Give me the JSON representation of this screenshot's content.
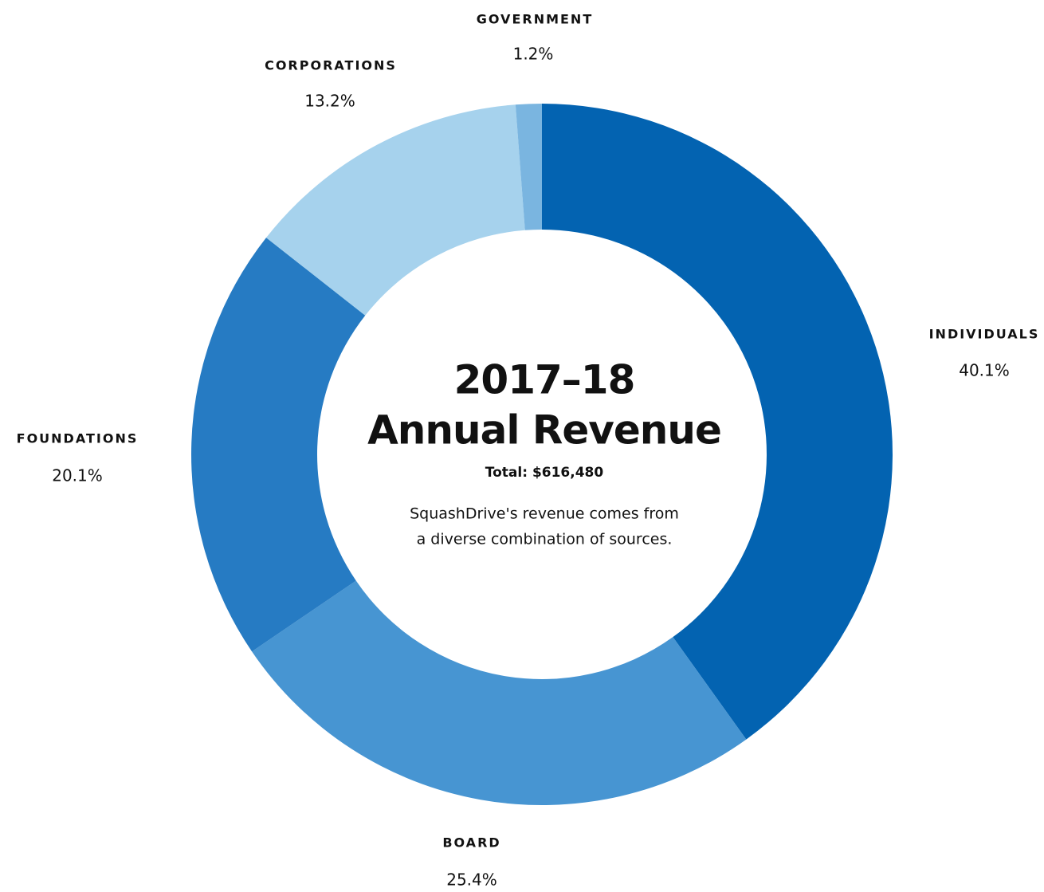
{
  "chart_data": {
    "type": "donut",
    "title": [
      "2017–18",
      "Annual Revenue"
    ],
    "subtitle": "Total: $616,480",
    "description": [
      "SquashDrive's revenue comes from",
      "a diverse combination of sources."
    ],
    "categories": [
      "INDIVIDUALS",
      "BOARD",
      "FOUNDATIONS",
      "CORPORATIONS",
      "GOVERNMENT"
    ],
    "values": [
      40.1,
      25.4,
      20.1,
      13.2,
      1.2
    ],
    "value_labels": [
      "40.1%",
      "25.4%",
      "20.1%",
      "13.2%",
      "1.2%"
    ],
    "colors": [
      "#0363b1",
      "#4795d2",
      "#267bc3",
      "#a6d2ed",
      "#7ab5e0"
    ]
  }
}
